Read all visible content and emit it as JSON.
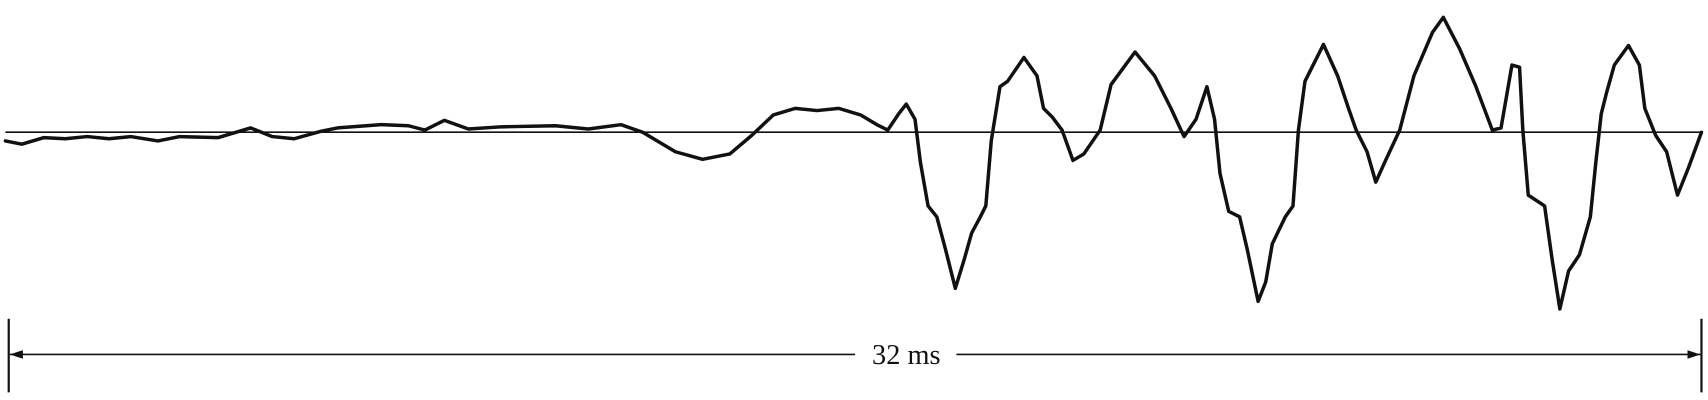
{
  "dimension": {
    "label": "32 ms"
  }
}
